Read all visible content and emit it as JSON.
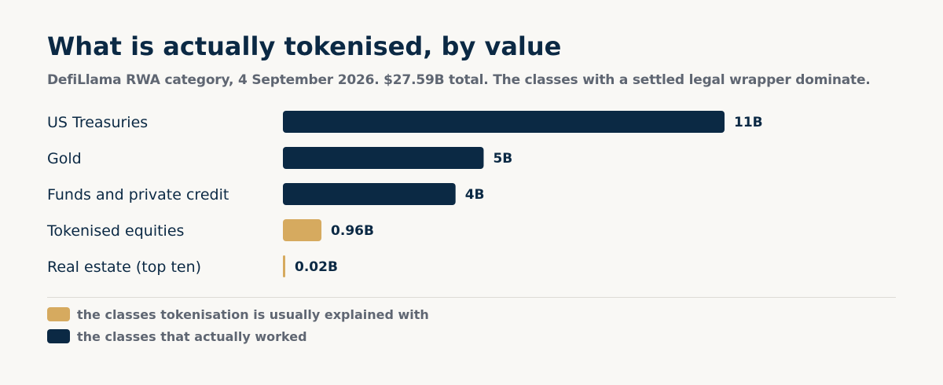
{
  "title": "What is actually tokenised, by value",
  "subtitle": "DefiLlama RWA category, 4 September 2026. $27.59B total. The classes with a settled legal wrapper dominate.",
  "colors": {
    "worked": "#0b2944",
    "explained": "#d6aa5f"
  },
  "legend": [
    {
      "label": "the classes tokenisation is usually explained with",
      "color": "#d6aa5f"
    },
    {
      "label": "the classes that actually worked",
      "color": "#0b2944"
    }
  ],
  "chart_data": {
    "type": "bar",
    "orientation": "horizontal",
    "categories": [
      "US Treasuries",
      "Gold",
      "Funds and private credit",
      "Tokenised equities",
      "Real estate (top ten)"
    ],
    "values": [
      11.0,
      5.0,
      4.3,
      0.96,
      0.02
    ],
    "value_labels": [
      "11B",
      "5B",
      "4B",
      "0.96B",
      "0.02B"
    ],
    "groups": [
      "worked",
      "worked",
      "worked",
      "explained",
      "explained"
    ],
    "xlim": [
      0,
      11
    ],
    "grid": false,
    "legend_position": "bottom-left"
  }
}
